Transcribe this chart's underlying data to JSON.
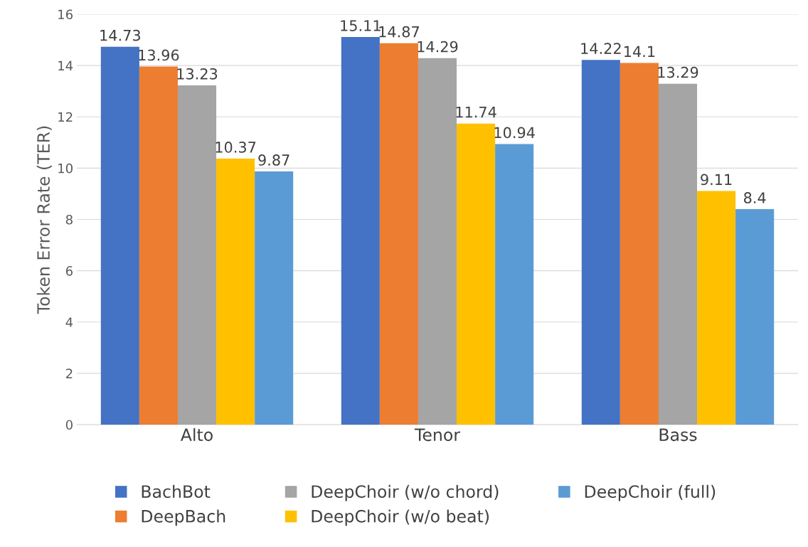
{
  "chart_data": {
    "type": "bar",
    "ylabel": "Token Error Rate (TER)",
    "categories": [
      "Alto",
      "Tenor",
      "Bass"
    ],
    "series": [
      {
        "name": "BachBot",
        "color": "#4472c4",
        "values": [
          14.73,
          15.11,
          14.22
        ]
      },
      {
        "name": "DeepBach",
        "color": "#ed7d31",
        "values": [
          13.96,
          14.87,
          14.1
        ]
      },
      {
        "name": "DeepChoir (w/o chord)",
        "color": "#a5a5a5",
        "values": [
          13.23,
          14.29,
          13.29
        ]
      },
      {
        "name": "DeepChoir (w/o beat)",
        "color": "#ffc000",
        "values": [
          10.37,
          11.74,
          9.11
        ]
      },
      {
        "name": "DeepChoir (full)",
        "color": "#5b9bd5",
        "values": [
          9.87,
          10.94,
          8.4
        ]
      }
    ],
    "ylim": [
      0,
      16
    ],
    "yticks": [
      0,
      2,
      4,
      6,
      8,
      10,
      12,
      14,
      16
    ],
    "grid": "y",
    "legend": "bottom",
    "data_labels": true
  }
}
